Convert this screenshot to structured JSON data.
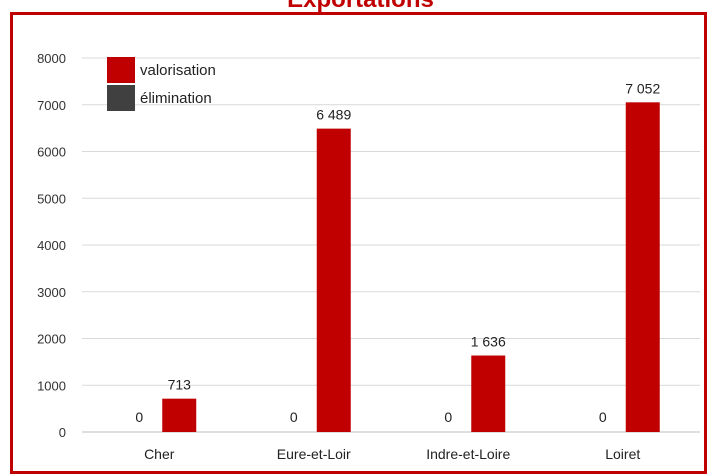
{
  "chart_data": {
    "type": "bar",
    "title": "Exportations",
    "categories": [
      "Cher",
      "Eure-et-Loir",
      "Indre-et-Loire",
      "Loiret"
    ],
    "series": [
      {
        "name": "élimination",
        "color": "#404040",
        "values": [
          0,
          0,
          0,
          0
        ],
        "labels": [
          "0",
          "0",
          "0",
          "0"
        ]
      },
      {
        "name": "valorisation",
        "color": "#c00000",
        "values": [
          713,
          6489,
          1636,
          7052
        ],
        "labels": [
          "713",
          "6 489",
          "1 636",
          "7 052"
        ]
      }
    ],
    "y_ticks": [
      "0",
      "1000",
      "2000",
      "3000",
      "4000",
      "5000",
      "6000",
      "7000",
      "8000"
    ],
    "ylim": [
      0,
      8000
    ],
    "grid": true,
    "legend_position": "top-left"
  }
}
